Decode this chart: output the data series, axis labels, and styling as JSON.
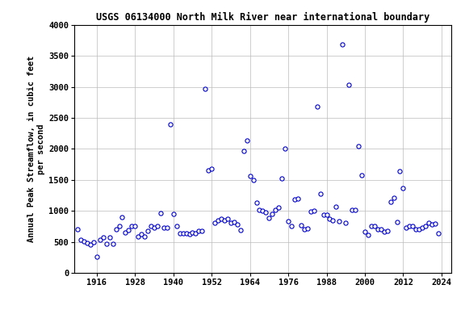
{
  "title": "USGS 06134000 North Milk River near international boundary",
  "ylabel": "Annual Peak Streamflow, in cubic feet\nper second",
  "xlim": [
    1909,
    2027
  ],
  "ylim": [
    0,
    4000
  ],
  "xticks": [
    1916,
    1928,
    1940,
    1952,
    1964,
    1976,
    1988,
    2000,
    2012,
    2024
  ],
  "yticks": [
    0,
    500,
    1000,
    1500,
    2000,
    2500,
    3000,
    3500,
    4000
  ],
  "marker_color": "#0000cc",
  "marker_facecolor": "white",
  "background_color": "#ffffff",
  "grid_color": "#bbbbbb",
  "data": [
    [
      1910,
      700
    ],
    [
      1911,
      530
    ],
    [
      1912,
      510
    ],
    [
      1913,
      480
    ],
    [
      1914,
      460
    ],
    [
      1915,
      490
    ],
    [
      1916,
      265
    ],
    [
      1917,
      530
    ],
    [
      1918,
      570
    ],
    [
      1919,
      470
    ],
    [
      1920,
      570
    ],
    [
      1921,
      470
    ],
    [
      1922,
      700
    ],
    [
      1923,
      750
    ],
    [
      1924,
      900
    ],
    [
      1925,
      650
    ],
    [
      1926,
      690
    ],
    [
      1927,
      760
    ],
    [
      1928,
      760
    ],
    [
      1929,
      590
    ],
    [
      1930,
      630
    ],
    [
      1931,
      590
    ],
    [
      1932,
      680
    ],
    [
      1933,
      750
    ],
    [
      1934,
      730
    ],
    [
      1935,
      750
    ],
    [
      1936,
      960
    ],
    [
      1937,
      730
    ],
    [
      1938,
      730
    ],
    [
      1939,
      2400
    ],
    [
      1940,
      950
    ],
    [
      1941,
      750
    ],
    [
      1942,
      640
    ],
    [
      1943,
      640
    ],
    [
      1944,
      640
    ],
    [
      1945,
      620
    ],
    [
      1946,
      650
    ],
    [
      1947,
      640
    ],
    [
      1948,
      670
    ],
    [
      1949,
      680
    ],
    [
      1950,
      2970
    ],
    [
      1951,
      1650
    ],
    [
      1952,
      1680
    ],
    [
      1953,
      800
    ],
    [
      1954,
      850
    ],
    [
      1955,
      870
    ],
    [
      1956,
      850
    ],
    [
      1957,
      870
    ],
    [
      1958,
      800
    ],
    [
      1959,
      820
    ],
    [
      1960,
      780
    ],
    [
      1961,
      690
    ],
    [
      1962,
      1960
    ],
    [
      1963,
      2140
    ],
    [
      1964,
      1560
    ],
    [
      1965,
      1500
    ],
    [
      1966,
      1130
    ],
    [
      1967,
      1020
    ],
    [
      1968,
      1000
    ],
    [
      1969,
      980
    ],
    [
      1970,
      880
    ],
    [
      1971,
      950
    ],
    [
      1972,
      1020
    ],
    [
      1973,
      1050
    ],
    [
      1974,
      1520
    ],
    [
      1975,
      2000
    ],
    [
      1976,
      830
    ],
    [
      1977,
      750
    ],
    [
      1978,
      1180
    ],
    [
      1979,
      1200
    ],
    [
      1980,
      770
    ],
    [
      1981,
      700
    ],
    [
      1982,
      720
    ],
    [
      1983,
      990
    ],
    [
      1984,
      1000
    ],
    [
      1985,
      2680
    ],
    [
      1986,
      1280
    ],
    [
      1987,
      930
    ],
    [
      1988,
      930
    ],
    [
      1989,
      870
    ],
    [
      1990,
      840
    ],
    [
      1991,
      1070
    ],
    [
      1992,
      830
    ],
    [
      1993,
      3690
    ],
    [
      1994,
      810
    ],
    [
      1995,
      3030
    ],
    [
      1996,
      1010
    ],
    [
      1997,
      1020
    ],
    [
      1998,
      2040
    ],
    [
      1999,
      1580
    ],
    [
      2000,
      660
    ],
    [
      2001,
      610
    ],
    [
      2002,
      760
    ],
    [
      2003,
      750
    ],
    [
      2004,
      700
    ],
    [
      2005,
      700
    ],
    [
      2006,
      660
    ],
    [
      2007,
      680
    ],
    [
      2008,
      1140
    ],
    [
      2009,
      1210
    ],
    [
      2010,
      820
    ],
    [
      2011,
      1640
    ],
    [
      2012,
      1370
    ],
    [
      2013,
      730
    ],
    [
      2014,
      750
    ],
    [
      2015,
      750
    ],
    [
      2016,
      700
    ],
    [
      2017,
      700
    ],
    [
      2018,
      730
    ],
    [
      2019,
      760
    ],
    [
      2020,
      800
    ],
    [
      2021,
      780
    ],
    [
      2022,
      790
    ],
    [
      2023,
      640
    ]
  ]
}
